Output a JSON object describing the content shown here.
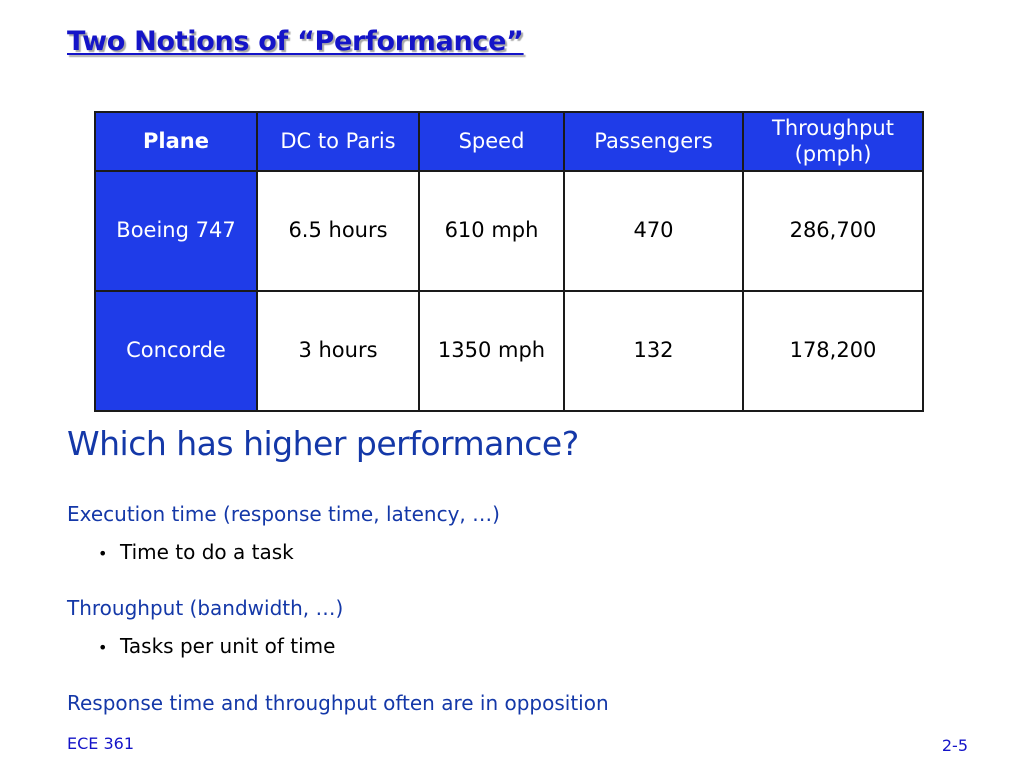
{
  "slide": {
    "title": "Two Notions of “Performance”",
    "table": {
      "headers": [
        "Plane",
        "DC to Paris",
        "Speed",
        "Passengers",
        "Throughput (pmph)"
      ],
      "rows": [
        {
          "plane": "Boeing 747",
          "dc_to_paris": "6.5 hours",
          "speed": "610 mph",
          "passengers": "470",
          "throughput": "286,700"
        },
        {
          "plane": "Concorde",
          "dc_to_paris": "3 hours",
          "speed": "1350 mph",
          "passengers": "132",
          "throughput": "178,200"
        }
      ]
    },
    "question": "Which has higher performance?",
    "points": [
      {
        "text": "Execution time (response time, latency, …)",
        "sub": "Time to do a task"
      },
      {
        "text": "Throughput (bandwidth, …)",
        "sub": "Tasks per unit of time"
      }
    ],
    "conclusion": "Response time and throughput often are in opposition",
    "bullet_glyph": "•"
  },
  "footer": {
    "course": "ECE 361",
    "page": "2-5"
  },
  "colors": {
    "title": "#1414c8",
    "body_blue": "#1438a8",
    "table_header": "#1f3ce8"
  }
}
